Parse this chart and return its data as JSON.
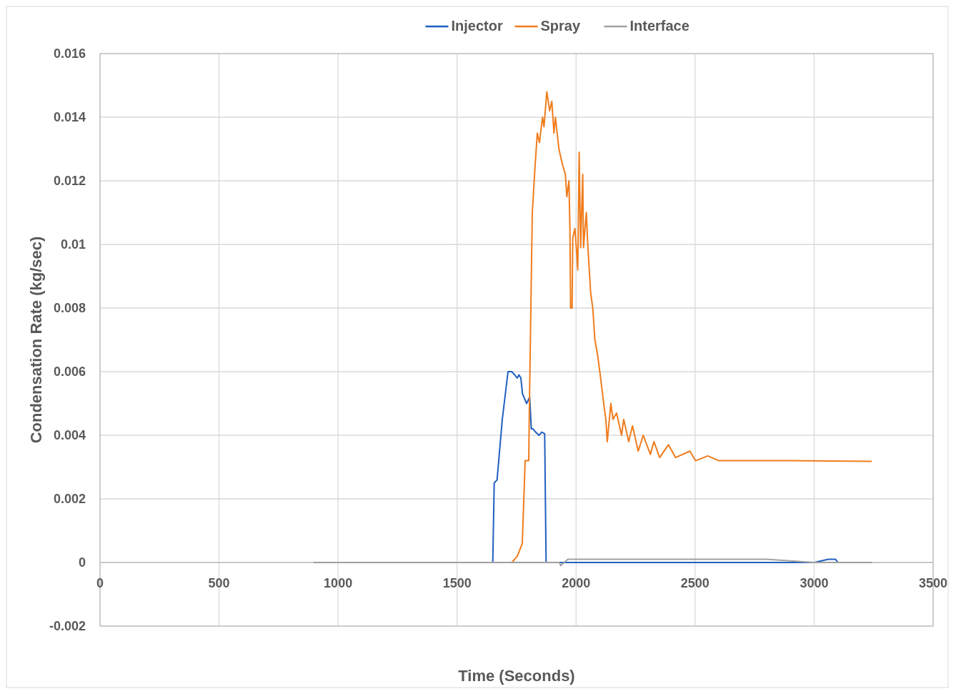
{
  "chart_data": {
    "type": "line",
    "xlabel": "Time (Seconds)",
    "ylabel": "Condensation Rate (kg/sec)",
    "xlim": [
      0,
      3500
    ],
    "xticks": [
      0,
      500,
      1000,
      1500,
      2000,
      2500,
      3000,
      3500
    ],
    "ylim": [
      -0.002,
      0.016
    ],
    "yticks": [
      -0.002,
      0,
      0.002,
      0.004,
      0.006,
      0.008,
      0.01,
      0.012,
      0.014,
      0.016
    ],
    "grid": true,
    "legend": "top",
    "marker": "none",
    "line_style": "solid",
    "series": [
      {
        "name": "Injector",
        "color": "#1f5fbf",
        "x": [
          900,
          1650,
          1656,
          1668,
          1690,
          1714,
          1730,
          1753,
          1760,
          1768,
          1775,
          1792,
          1805,
          1812,
          1819,
          1830,
          1844,
          1856,
          1868,
          1874,
          2000,
          3000,
          3060,
          3090,
          3100,
          3240
        ],
        "values": [
          0,
          0,
          0.0025,
          0.0026,
          0.0045,
          0.006,
          0.006,
          0.0058,
          0.0059,
          0.0058,
          0.0053,
          0.005,
          0.0052,
          0.0042,
          0.0042,
          0.0041,
          0.004,
          0.0041,
          0.00405,
          0,
          0,
          0,
          0.0001,
          0.0001,
          0,
          0
        ]
      },
      {
        "name": "Spray",
        "color": "#f07c1c",
        "x": [
          900,
          1700,
          1730,
          1753,
          1774,
          1786,
          1801,
          1804,
          1810,
          1816,
          1828,
          1837,
          1846,
          1859,
          1865,
          1877,
          1889,
          1898,
          1907,
          1913,
          1928,
          1943,
          1955,
          1961,
          1970,
          1974,
          1977,
          1983,
          1986,
          1995,
          2001,
          2007,
          2013,
          2019,
          2028,
          2031,
          2043,
          2049,
          2061,
          2070,
          2079,
          2091,
          2103,
          2116,
          2125,
          2131,
          2146,
          2155,
          2170,
          2191,
          2200,
          2221,
          2237,
          2261,
          2282,
          2312,
          2327,
          2351,
          2388,
          2418,
          2478,
          2502,
          2553,
          2600,
          2900,
          3240
        ],
        "values": [
          0,
          0,
          0,
          0.0002,
          0.0006,
          0.0032,
          0.0032,
          0.005,
          0.008,
          0.011,
          0.0125,
          0.0135,
          0.0132,
          0.014,
          0.0137,
          0.0148,
          0.0142,
          0.0145,
          0.0135,
          0.014,
          0.013,
          0.0125,
          0.0122,
          0.0115,
          0.012,
          0.0105,
          0.008,
          0.008,
          0.0102,
          0.0105,
          0.0099,
          0.0092,
          0.0129,
          0.0099,
          0.0122,
          0.0099,
          0.011,
          0.01,
          0.0085,
          0.008,
          0.007,
          0.0065,
          0.0058,
          0.005,
          0.0045,
          0.0038,
          0.005,
          0.0045,
          0.0047,
          0.004,
          0.0045,
          0.0038,
          0.0043,
          0.0035,
          0.004,
          0.0034,
          0.0038,
          0.0033,
          0.0037,
          0.0033,
          0.0035,
          0.0032,
          0.00335,
          0.0032,
          0.0032,
          0.00318
        ]
      },
      {
        "name": "Interface",
        "color": "#a0a0a0",
        "x": [
          900,
          1930,
          1935,
          1950,
          1965,
          1980,
          2000,
          2500,
          2800,
          3000,
          3240
        ],
        "values": [
          0,
          0,
          -0.0001,
          0,
          0.0001,
          0.0001,
          0.0001,
          0.0001,
          0.0001,
          0,
          0
        ]
      }
    ]
  }
}
